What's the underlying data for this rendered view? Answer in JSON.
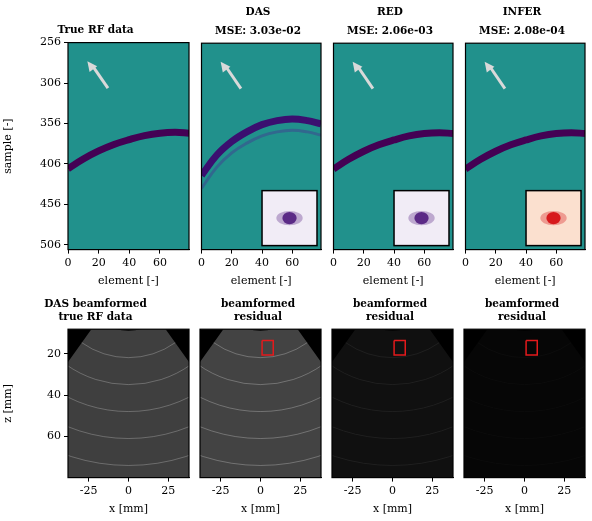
{
  "chart_data": [
    {
      "type": "line",
      "title": "True RF data",
      "xlabel": "element [-]",
      "ylabel": "sample [-]",
      "xlim": [
        0,
        79
      ],
      "xticks": [
        0,
        20,
        40,
        60
      ],
      "ylim": [
        512,
        256
      ],
      "yticks": [
        256,
        306,
        356,
        406,
        456,
        506
      ],
      "x": [
        0,
        10,
        20,
        30,
        40,
        50,
        60,
        70,
        79
      ],
      "series": [
        {
          "color": "#440154",
          "values": [
            412,
            400,
            390,
            382,
            376,
            371,
            368,
            367,
            368
          ]
        },
        {
          "color": "#fde725",
          "values": [
            412,
            400,
            390,
            382,
            376,
            371,
            368,
            367,
            368
          ]
        }
      ]
    },
    {
      "type": "line",
      "title": "DAS",
      "subtitle": "MSE: 3.03e-02",
      "xlabel": "element [-]",
      "tick_labels": "x",
      "xlim": [
        0,
        79
      ],
      "xticks": [
        0,
        20,
        40,
        60
      ],
      "ylim": [
        512,
        256
      ],
      "x": [
        0,
        10,
        20,
        30,
        40,
        50,
        60,
        70,
        79
      ],
      "series": [
        {
          "color": "#3b0f70",
          "values": [
            420,
            395,
            378,
            366,
            357,
            352,
            350,
            352,
            356
          ]
        },
        {
          "color": "#31688e",
          "values": [
            436,
            410,
            392,
            380,
            371,
            366,
            364,
            366,
            370
          ]
        }
      ]
    },
    {
      "type": "line",
      "title": "RED",
      "subtitle": "MSE: 2.06e-03",
      "xlabel": "element [-]",
      "tick_labels": "x",
      "xlim": [
        0,
        79
      ],
      "xticks": [
        0,
        20,
        40,
        60
      ],
      "ylim": [
        512,
        256
      ],
      "x": [
        0,
        10,
        20,
        30,
        40,
        50,
        60,
        70,
        79
      ],
      "series": [
        {
          "color": "#440154",
          "values": [
            412,
            400,
            390,
            382,
            376,
            371,
            368,
            367,
            368
          ]
        },
        {
          "color": "#fde725",
          "values": [
            412,
            400,
            390,
            382,
            376,
            371,
            368,
            367,
            368
          ]
        }
      ]
    },
    {
      "type": "line",
      "title": "INFER",
      "subtitle": "MSE: 2.08e-04",
      "xlabel": "element [-]",
      "tick_labels": "x",
      "xlim": [
        0,
        79
      ],
      "xticks": [
        0,
        20,
        40,
        60
      ],
      "ylim": [
        512,
        256
      ],
      "x": [
        0,
        10,
        20,
        30,
        40,
        50,
        60,
        70,
        79
      ],
      "series": [
        {
          "color": "#440154",
          "values": [
            412,
            400,
            390,
            382,
            376,
            371,
            368,
            367,
            368
          ]
        },
        {
          "color": "#fde725",
          "values": [
            412,
            400,
            390,
            382,
            376,
            371,
            368,
            367,
            368
          ]
        }
      ]
    },
    {
      "type": "scatter",
      "title": "DAS beamformed true RF data",
      "xlabel": "x [mm]",
      "ylabel": "z [mm]",
      "xlim": [
        -38,
        38
      ],
      "xticks": [
        -25,
        0,
        25
      ],
      "ylim": [
        80,
        8
      ],
      "yticks": [
        20,
        40,
        60
      ]
    },
    {
      "type": "scatter",
      "title": "beamformed residual",
      "xlabel": "x [mm]",
      "tick_labels": "x",
      "xlim": [
        -38,
        38
      ],
      "xticks": [
        -25,
        0,
        25
      ],
      "ylim": [
        80,
        8
      ],
      "x": [
        1,
        8,
        8,
        1,
        1
      ],
      "series": [
        {
          "type": "line",
          "color": "#e31a1c",
          "values": [
            13.5,
            13.5,
            20.5,
            20.5,
            13.5
          ]
        }
      ]
    },
    {
      "type": "scatter",
      "title": "beamformed residual",
      "xlabel": "x [mm]",
      "tick_labels": "x",
      "xlim": [
        -38,
        38
      ],
      "xticks": [
        -25,
        0,
        25
      ],
      "ylim": [
        80,
        8
      ],
      "x": [
        1,
        8,
        8,
        1,
        1
      ],
      "series": [
        {
          "type": "line",
          "color": "#e31a1c",
          "values": [
            13.5,
            13.5,
            20.5,
            20.5,
            13.5
          ]
        }
      ]
    },
    {
      "type": "scatter",
      "title": "beamformed residual",
      "xlabel": "x [mm]",
      "tick_labels": "x",
      "xlim": [
        -38,
        38
      ],
      "xticks": [
        -25,
        0,
        25
      ],
      "ylim": [
        80,
        8
      ],
      "x": [
        1,
        8,
        8,
        1,
        1
      ],
      "series": [
        {
          "type": "line",
          "color": "#e31a1c",
          "values": [
            13.5,
            13.5,
            20.5,
            20.5,
            13.5
          ]
        }
      ]
    }
  ]
}
